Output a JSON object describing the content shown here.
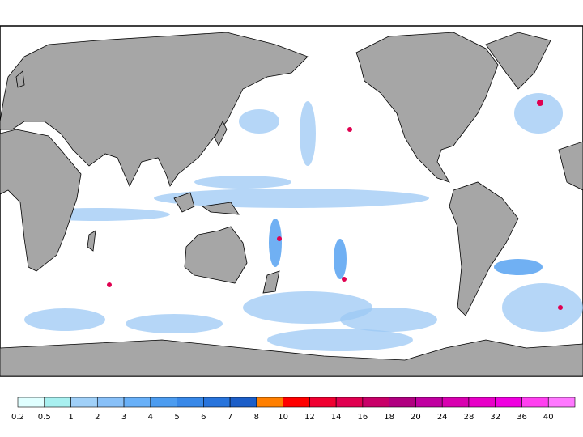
{
  "legend": {
    "labels": [
      "0.2",
      "0.5",
      "1",
      "2",
      "3",
      "4",
      "5",
      "6",
      "7",
      "8",
      "10",
      "12",
      "14",
      "16",
      "18",
      "20",
      "24",
      "28",
      "32",
      "36",
      "40"
    ],
    "colors": [
      "#e0ffff",
      "#a8f0f0",
      "#a0d0f8",
      "#88c0f8",
      "#68b0f8",
      "#4c9cf0",
      "#3888e8",
      "#2874dc",
      "#1c5ec8",
      "#ff7f00",
      "#ff0000",
      "#f00030",
      "#e00050",
      "#c80068",
      "#b00080",
      "#c000a0",
      "#d800b0",
      "#e800c8",
      "#f000e0",
      "#ff40f0",
      "#ff78ff"
    ]
  }
}
